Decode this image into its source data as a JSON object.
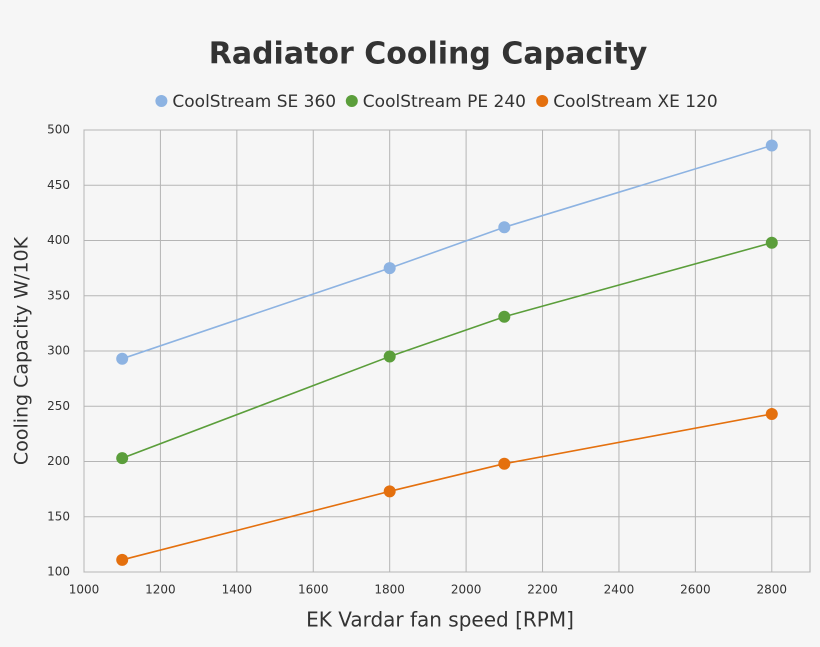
{
  "chart_data": {
    "type": "line",
    "title": "Radiator Cooling Capacity",
    "x_label": "EK Vardar fan speed   [RPM]",
    "y_label": "Cooling Capacity  W/10K",
    "x": [
      1100,
      1800,
      2100,
      2800
    ],
    "series": [
      {
        "name": "CoolStream SE 360",
        "color": "#8db3e2",
        "values": [
          293,
          375,
          412,
          486
        ]
      },
      {
        "name": "CoolStream PE 240",
        "color": "#5b9e3b",
        "values": [
          203,
          295,
          331,
          398
        ]
      },
      {
        "name": "CoolStream XE 120",
        "color": "#e4700e",
        "values": [
          111,
          173,
          198,
          243
        ]
      }
    ],
    "xlim": [
      1000,
      2900
    ],
    "xticks": [
      1000,
      1200,
      1400,
      1600,
      1800,
      2000,
      2200,
      2400,
      2600,
      2800
    ],
    "ylim": [
      100,
      500
    ],
    "yticks": [
      100,
      150,
      200,
      250,
      300,
      350,
      400,
      450,
      500
    ],
    "grid": true,
    "legend": "top"
  }
}
